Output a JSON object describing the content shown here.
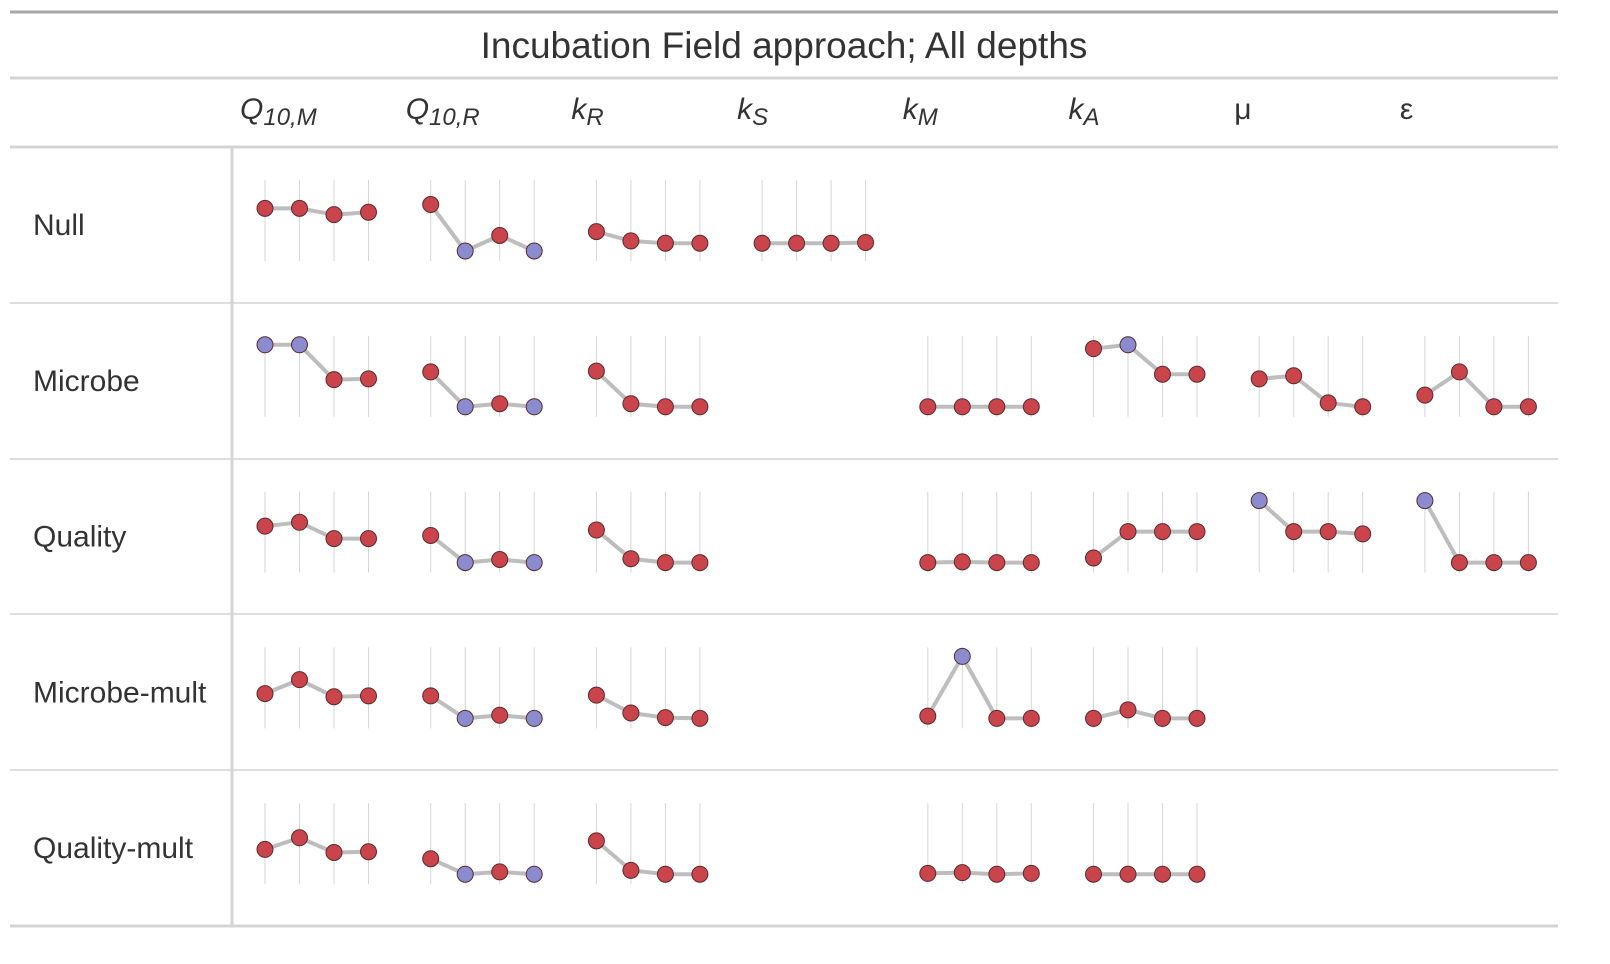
{
  "title": "Incubation Field approach; All depths",
  "colors": {
    "positive": "#c9444b",
    "negative": "#8a8ccf",
    "line": "#bdbdbd",
    "rule": "#d4d4d4",
    "top_rule": "#a8a8a8"
  },
  "chart_data": {
    "type": "table",
    "title": "Incubation Field approach; All depths",
    "columns": [
      {
        "key": "Q10M",
        "base": "Q",
        "sub": "10,M"
      },
      {
        "key": "Q10R",
        "base": "Q",
        "sub": "10,R"
      },
      {
        "key": "kR",
        "base": "k",
        "sub": "R"
      },
      {
        "key": "kS",
        "base": "k",
        "sub": "S"
      },
      {
        "key": "kM",
        "base": "k",
        "sub": "M"
      },
      {
        "key": "kA",
        "base": "k",
        "sub": "A"
      },
      {
        "key": "mu",
        "base": "μ",
        "sub": ""
      },
      {
        "key": "eps",
        "base": "ε",
        "sub": ""
      }
    ],
    "rows": [
      {
        "label": "Null",
        "cells": [
          {
            "values": [
              0.75,
              0.75,
              0.67,
              0.7
            ],
            "colors": [
              "pos",
              "pos",
              "pos",
              "pos"
            ]
          },
          {
            "values": [
              0.8,
              0.2,
              0.4,
              0.2
            ],
            "colors": [
              "pos",
              "neg",
              "pos",
              "neg"
            ]
          },
          {
            "values": [
              0.45,
              0.33,
              0.3,
              0.3
            ],
            "colors": [
              "pos",
              "pos",
              "pos",
              "pos"
            ]
          },
          {
            "values": [
              0.3,
              0.3,
              0.3,
              0.31
            ],
            "colors": [
              "pos",
              "pos",
              "pos",
              "pos"
            ]
          },
          null,
          null,
          null,
          null
        ]
      },
      {
        "label": "Microbe",
        "cells": [
          {
            "values": [
              1.0,
              1.0,
              0.55,
              0.56
            ],
            "colors": [
              "neg",
              "neg",
              "pos",
              "pos"
            ]
          },
          {
            "values": [
              0.65,
              0.2,
              0.24,
              0.2
            ],
            "colors": [
              "pos",
              "neg",
              "pos",
              "neg"
            ]
          },
          {
            "values": [
              0.66,
              0.24,
              0.2,
              0.2
            ],
            "colors": [
              "pos",
              "pos",
              "pos",
              "pos"
            ]
          },
          null,
          {
            "values": [
              0.2,
              0.2,
              0.2,
              0.2
            ],
            "colors": [
              "pos",
              "pos",
              "pos",
              "pos"
            ]
          },
          {
            "values": [
              0.95,
              1.0,
              0.62,
              0.62
            ],
            "colors": [
              "pos",
              "neg",
              "pos",
              "pos"
            ]
          },
          {
            "values": [
              0.56,
              0.6,
              0.25,
              0.2
            ],
            "colors": [
              "pos",
              "pos",
              "pos",
              "pos"
            ]
          },
          {
            "values": [
              0.35,
              0.65,
              0.2,
              0.2
            ],
            "colors": [
              "pos",
              "pos",
              "pos",
              "pos"
            ]
          }
        ]
      },
      {
        "label": "Quality",
        "cells": [
          {
            "values": [
              0.67,
              0.72,
              0.51,
              0.51
            ],
            "colors": [
              "pos",
              "pos",
              "pos",
              "pos"
            ]
          },
          {
            "values": [
              0.55,
              0.2,
              0.24,
              0.2
            ],
            "colors": [
              "pos",
              "neg",
              "pos",
              "neg"
            ]
          },
          {
            "values": [
              0.62,
              0.25,
              0.2,
              0.2
            ],
            "colors": [
              "pos",
              "pos",
              "pos",
              "pos"
            ]
          },
          null,
          {
            "values": [
              0.2,
              0.21,
              0.2,
              0.2
            ],
            "colors": [
              "pos",
              "pos",
              "pos",
              "pos"
            ]
          },
          {
            "values": [
              0.26,
              0.6,
              0.6,
              0.6
            ],
            "colors": [
              "pos",
              "pos",
              "pos",
              "pos"
            ]
          },
          {
            "values": [
              1.0,
              0.6,
              0.6,
              0.57
            ],
            "colors": [
              "neg",
              "pos",
              "pos",
              "pos"
            ]
          },
          {
            "values": [
              1.0,
              0.2,
              0.2,
              0.2
            ],
            "colors": [
              "neg",
              "pos",
              "pos",
              "pos"
            ]
          }
        ]
      },
      {
        "label": "Microbe-mult",
        "cells": [
          {
            "values": [
              0.52,
              0.7,
              0.48,
              0.49
            ],
            "colors": [
              "pos",
              "pos",
              "pos",
              "pos"
            ]
          },
          {
            "values": [
              0.49,
              0.2,
              0.24,
              0.2
            ],
            "colors": [
              "pos",
              "neg",
              "pos",
              "neg"
            ]
          },
          {
            "values": [
              0.5,
              0.27,
              0.21,
              0.2
            ],
            "colors": [
              "pos",
              "pos",
              "pos",
              "pos"
            ]
          },
          null,
          {
            "values": [
              0.23,
              1.0,
              0.2,
              0.2
            ],
            "colors": [
              "pos",
              "neg",
              "pos",
              "pos"
            ]
          },
          {
            "values": [
              0.2,
              0.31,
              0.2,
              0.2
            ],
            "colors": [
              "pos",
              "pos",
              "pos",
              "pos"
            ]
          },
          null,
          null
        ]
      },
      {
        "label": "Quality-mult",
        "cells": [
          {
            "values": [
              0.52,
              0.67,
              0.48,
              0.49
            ],
            "colors": [
              "pos",
              "pos",
              "pos",
              "pos"
            ]
          },
          {
            "values": [
              0.4,
              0.2,
              0.23,
              0.2
            ],
            "colors": [
              "pos",
              "neg",
              "pos",
              "neg"
            ]
          },
          {
            "values": [
              0.63,
              0.25,
              0.2,
              0.2
            ],
            "colors": [
              "pos",
              "pos",
              "pos",
              "pos"
            ]
          },
          null,
          {
            "values": [
              0.21,
              0.22,
              0.2,
              0.21
            ],
            "colors": [
              "pos",
              "pos",
              "pos",
              "pos"
            ]
          },
          {
            "values": [
              0.2,
              0.2,
              0.2,
              0.2
            ],
            "colors": [
              "pos",
              "pos",
              "pos",
              "pos"
            ]
          },
          null,
          null
        ]
      }
    ]
  }
}
